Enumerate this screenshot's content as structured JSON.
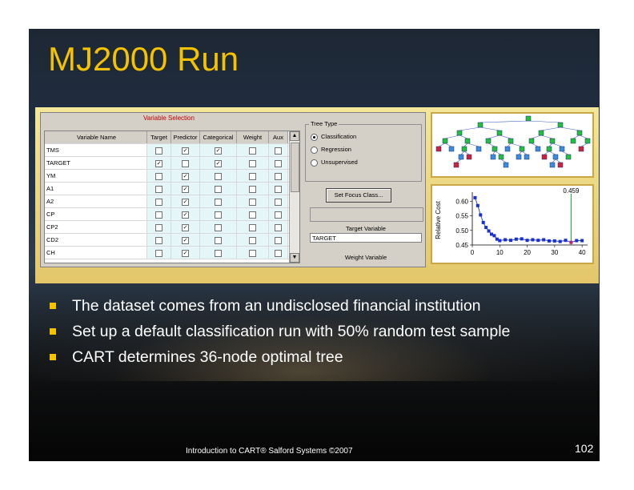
{
  "slide": {
    "title": "MJ2000 Run",
    "bullets": [
      "The dataset comes from an undisclosed financial institution",
      "Set up a default classification run with 50% random test sample",
      "CART determines 36-node optimal tree"
    ],
    "footer": "Introduction to CART®   Salford Systems ©2007",
    "page_number": "102",
    "colors": {
      "title": "#f4c200",
      "bullet": "#f4c200",
      "text": "#ffffff"
    }
  },
  "variable_selection": {
    "title": "Variable Selection",
    "columns": [
      "Variable Name",
      "Target",
      "Predictor",
      "Categorical",
      "Weight",
      "Aux"
    ],
    "rows": [
      {
        "name": "TMS",
        "target": false,
        "predictor": true,
        "categorical": true,
        "weight": false,
        "aux": false
      },
      {
        "name": "TARGET",
        "target": true,
        "predictor": false,
        "categorical": true,
        "weight": false,
        "aux": false
      },
      {
        "name": "YM",
        "target": false,
        "predictor": true,
        "categorical": false,
        "weight": false,
        "aux": false
      },
      {
        "name": "A1",
        "target": false,
        "predictor": true,
        "categorical": false,
        "weight": false,
        "aux": false
      },
      {
        "name": "A2",
        "target": false,
        "predictor": true,
        "categorical": false,
        "weight": false,
        "aux": false
      },
      {
        "name": "CP",
        "target": false,
        "predictor": true,
        "categorical": false,
        "weight": false,
        "aux": false
      },
      {
        "name": "CP2",
        "target": false,
        "predictor": true,
        "categorical": false,
        "weight": false,
        "aux": false
      },
      {
        "name": "CD2",
        "target": false,
        "predictor": true,
        "categorical": false,
        "weight": false,
        "aux": false
      },
      {
        "name": "CH",
        "target": false,
        "predictor": true,
        "categorical": false,
        "weight": false,
        "aux": false
      }
    ],
    "tree_type": {
      "label": "Tree Type",
      "options": [
        {
          "label": "Classification",
          "selected": true
        },
        {
          "label": "Regression",
          "selected": false
        },
        {
          "label": "Unsupervised",
          "selected": false
        }
      ]
    },
    "focus_button": "Set Focus Class...",
    "target_variable_label": "Target Variable",
    "target_variable_value": "TARGET",
    "weight_variable_label": "Weight Variable"
  },
  "cost_plot": {
    "type": "line",
    "ylabel": "Relative Cost",
    "yticks": [
      "0.60",
      "0.55",
      "0.50",
      "0.45"
    ],
    "xticks": [
      "0",
      "10",
      "20",
      "30",
      "40"
    ],
    "ylim": [
      0.45,
      0.62
    ],
    "xlim": [
      0,
      42
    ],
    "annotation": "0.459",
    "optimal_x": 36,
    "x": [
      1,
      2,
      3,
      4,
      5,
      6,
      7,
      8,
      9,
      10,
      12,
      14,
      16,
      18,
      20,
      22,
      24,
      26,
      28,
      30,
      32,
      34,
      36,
      38,
      40
    ],
    "y": [
      0.612,
      0.585,
      0.553,
      0.527,
      0.51,
      0.498,
      0.487,
      0.482,
      0.47,
      0.465,
      0.468,
      0.466,
      0.47,
      0.471,
      0.466,
      0.468,
      0.466,
      0.468,
      0.464,
      0.464,
      0.462,
      0.466,
      0.459,
      0.465,
      0.465
    ],
    "colors": {
      "line": "#2f4fd8",
      "marker": "#1a2fcf",
      "optimal": "#18a030",
      "optimal_marker": "#c0207a"
    }
  }
}
